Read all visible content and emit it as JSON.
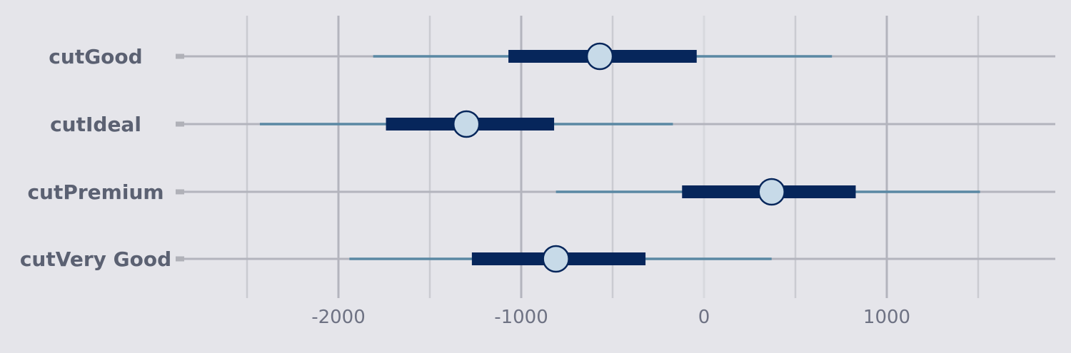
{
  "chart_data": {
    "type": "interval",
    "categories": [
      "cutGood",
      "cutIdeal",
      "cutPremium",
      "cutVery Good"
    ],
    "series": [
      {
        "estimate": [
          -570,
          -1300,
          370,
          -810
        ],
        "inner_low": [
          -1070,
          -1740,
          -120,
          -1270
        ],
        "inner_high": [
          -40,
          -820,
          830,
          -320
        ],
        "outer_low": [
          -1810,
          -2430,
          -810,
          -1940
        ],
        "outer_high": [
          700,
          -170,
          1510,
          370
        ]
      }
    ],
    "xticks": [
      -2000,
      -1000,
      0,
      1000
    ],
    "xtick_labels": [
      "-2000",
      "-1000",
      "0",
      "1000"
    ],
    "xlim": [
      -2900,
      1950
    ],
    "grid": true,
    "colors": {
      "background": "#e5e5ea",
      "grid_major": "#b3b4bd",
      "grid_minor": "#cacbd1",
      "grid_zero": "#d8d9de",
      "outer_interval": "#5a88a3",
      "inner_interval": "#06265b",
      "point_fill": "#c7dae8",
      "point_stroke": "#06265b"
    }
  }
}
